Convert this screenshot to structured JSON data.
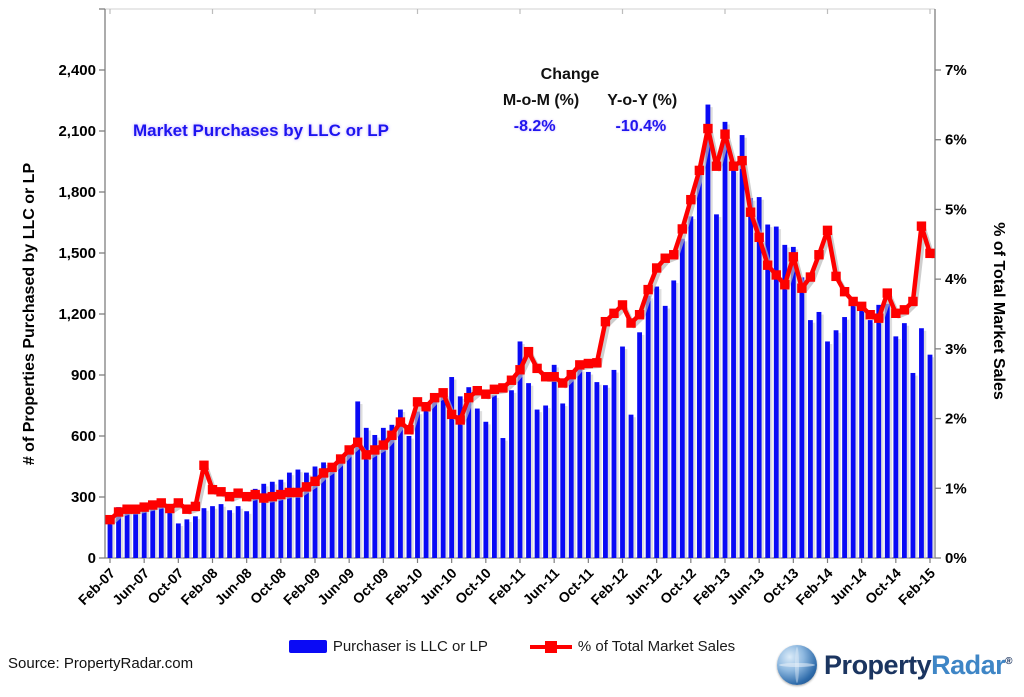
{
  "ui": {
    "title": "Market Purchases by LLC or LP",
    "change": {
      "title": "Change",
      "mom_label": "M-o-M (%)",
      "yoy_label": "Y-o-Y (%)",
      "mom_value": "-8.2%",
      "yoy_value": "-10.4%"
    },
    "left_axis_title": "# of Properties Purchased by LLC or LP",
    "right_axis_title": "% of Total Market Sales",
    "legend": {
      "bar_label": "Purchaser is LLC or LP",
      "line_label": "% of Total Market Sales"
    },
    "source_text": "Source: PropertyRadar.com",
    "logo": {
      "part1": "Property",
      "part2": "Radar",
      "reg": "®"
    },
    "colors": {
      "bar": "#0a0af5",
      "line": "#fe0000",
      "axis": "#7f7f7f",
      "accent_blue_text": "#2016ee"
    }
  },
  "chart_data": {
    "type": "bar",
    "subtype": "bar+line combo, dual axis",
    "title": "Market Purchases by LLC or LP",
    "xlabel": "",
    "ylabel_left": "# of Properties Purchased by LLC or LP",
    "ylabel_right": "% of Total Market Sales",
    "ylim_left": [
      0,
      2400
    ],
    "ylim_right": [
      0,
      7
    ],
    "grid": false,
    "legend_position": "bottom",
    "x_tick_every": 4,
    "left_tick_labels": [
      "0",
      "300",
      "600",
      "900",
      "1,200",
      "1,500",
      "1,800",
      "2,100",
      "2,400"
    ],
    "right_tick_labels": [
      "0%",
      "1%",
      "2%",
      "3%",
      "4%",
      "5%",
      "6%",
      "7%"
    ],
    "categories": [
      "Feb-07",
      "Mar-07",
      "Apr-07",
      "May-07",
      "Jun-07",
      "Jul-07",
      "Aug-07",
      "Sep-07",
      "Oct-07",
      "Nov-07",
      "Dec-07",
      "Jan-08",
      "Feb-08",
      "Mar-08",
      "Apr-08",
      "May-08",
      "Jun-08",
      "Jul-08",
      "Aug-08",
      "Sep-08",
      "Oct-08",
      "Nov-08",
      "Dec-08",
      "Jan-09",
      "Feb-09",
      "Mar-09",
      "Apr-09",
      "May-09",
      "Jun-09",
      "Jul-09",
      "Aug-09",
      "Sep-09",
      "Oct-09",
      "Nov-09",
      "Dec-09",
      "Jan-10",
      "Feb-10",
      "Mar-10",
      "Apr-10",
      "May-10",
      "Jun-10",
      "Jul-10",
      "Aug-10",
      "Sep-10",
      "Oct-10",
      "Nov-10",
      "Dec-10",
      "Jan-11",
      "Feb-11",
      "Mar-11",
      "Apr-11",
      "May-11",
      "Jun-11",
      "Jul-11",
      "Aug-11",
      "Sep-11",
      "Oct-11",
      "Nov-11",
      "Dec-11",
      "Jan-12",
      "Feb-12",
      "Mar-12",
      "Apr-12",
      "May-12",
      "Jun-12",
      "Jul-12",
      "Aug-12",
      "Sep-12",
      "Oct-12",
      "Nov-12",
      "Dec-12",
      "Jan-13",
      "Feb-13",
      "Mar-13",
      "Apr-13",
      "May-13",
      "Jun-13",
      "Jul-13",
      "Aug-13",
      "Sep-13",
      "Oct-13",
      "Nov-13",
      "Dec-13",
      "Jan-14",
      "Feb-14",
      "Mar-14",
      "Apr-14",
      "May-14",
      "Jun-14",
      "Jul-14",
      "Aug-14",
      "Sep-14",
      "Oct-14",
      "Nov-14",
      "Dec-14",
      "Jan-15",
      "Feb-15"
    ],
    "series": [
      {
        "name": "Purchaser is LLC or LP",
        "type": "bar",
        "axis": "left",
        "color": "#0a0af5",
        "values": [
          185,
          250,
          245,
          250,
          245,
          260,
          255,
          240,
          170,
          190,
          205,
          245,
          255,
          265,
          235,
          255,
          230,
          340,
          365,
          375,
          385,
          420,
          435,
          420,
          450,
          470,
          440,
          480,
          520,
          770,
          640,
          605,
          640,
          655,
          730,
          600,
          720,
          750,
          800,
          825,
          890,
          795,
          840,
          735,
          670,
          800,
          590,
          825,
          1065,
          860,
          730,
          750,
          950,
          760,
          890,
          930,
          915,
          865,
          850,
          925,
          1040,
          705,
          1110,
          1290,
          1335,
          1240,
          1365,
          1570,
          1680,
          1890,
          2230,
          1690,
          2145,
          1910,
          2080,
          1770,
          1775,
          1640,
          1630,
          1540,
          1530,
          1380,
          1170,
          1210,
          1065,
          1120,
          1185,
          1260,
          1255,
          1170,
          1245,
          1250,
          1090,
          1155,
          910,
          1130,
          1000
        ]
      },
      {
        "name": "% of Total Market Sales",
        "type": "line",
        "axis": "right",
        "color": "#fe0000",
        "marker": "square",
        "values": [
          0.55,
          0.66,
          0.7,
          0.7,
          0.73,
          0.76,
          0.79,
          0.71,
          0.79,
          0.7,
          0.74,
          1.33,
          0.98,
          0.95,
          0.88,
          0.93,
          0.88,
          0.91,
          0.86,
          0.88,
          0.91,
          0.94,
          0.94,
          1.02,
          1.1,
          1.22,
          1.3,
          1.42,
          1.55,
          1.66,
          1.48,
          1.55,
          1.62,
          1.76,
          1.95,
          1.84,
          2.24,
          2.17,
          2.3,
          2.37,
          2.06,
          1.98,
          2.3,
          2.4,
          2.35,
          2.42,
          2.44,
          2.55,
          2.7,
          2.96,
          2.72,
          2.6,
          2.6,
          2.51,
          2.63,
          2.77,
          2.79,
          2.8,
          3.39,
          3.51,
          3.63,
          3.37,
          3.49,
          3.85,
          4.16,
          4.3,
          4.35,
          4.72,
          5.14,
          5.56,
          6.16,
          5.62,
          6.08,
          5.62,
          5.7,
          4.96,
          4.6,
          4.2,
          4.06,
          3.92,
          4.32,
          3.87,
          4.03,
          4.35,
          4.7,
          4.04,
          3.82,
          3.68,
          3.61,
          3.49,
          3.44,
          3.8,
          3.51,
          3.56,
          3.68,
          4.76,
          4.37
        ]
      }
    ],
    "annotations": {
      "change_title": "Change",
      "mom_label": "M-o-M (%)",
      "yoy_label": "Y-o-Y (%)",
      "mom_value": "-8.2%",
      "yoy_value": "-10.4%"
    }
  }
}
